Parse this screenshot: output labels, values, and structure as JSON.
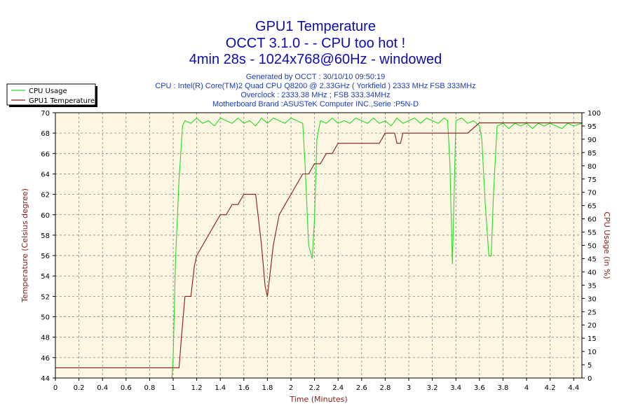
{
  "title": {
    "line1": "GPU1 Temperature",
    "line2": "OCCT 3.1.0 -  - CPU too hot !",
    "line3": "4min 28s - 1024x768@60Hz - windowed"
  },
  "info": {
    "generated": "Generated by OCCT : 30/10/10 09:50:19",
    "cpu": "CPU : Intel(R) Core(TM)2 Quad CPU Q8200 @ 2.33GHz ( Yorkfield ) 2333 MHz FSB 333MHz",
    "overclock": "Overclock : 2333.38 MHz ; FSB 333.34MHz",
    "motherboard": "Motherboard Brand :ASUSTeK Computer INC.,Serie :P5N-D"
  },
  "colors": {
    "cpu_usage": "#22dd22",
    "gpu_temp": "#8b1a1a",
    "plot_bg": "#fdf6e3",
    "grid": "#888888",
    "title": "#0b0bb0",
    "info": "#1e3cb4"
  },
  "chart_data": {
    "type": "line",
    "xlabel": "Time (Minutes)",
    "ylabel_left": "Temperature (Celsius degree)",
    "ylabel_right": "CPU Usage (in %)",
    "xlim": [
      0,
      4.47
    ],
    "ylim_left": [
      44,
      70
    ],
    "ylim_right": [
      0,
      100
    ],
    "x_ticks": [
      "0",
      "0.2",
      "0.4",
      "0.6",
      "0.8",
      "1",
      "1.2",
      "1.4",
      "1.6",
      "1.8",
      "2",
      "2.2",
      "2.4",
      "2.6",
      "2.8",
      "3",
      "3.2",
      "3.4",
      "3.6",
      "3.8",
      "4",
      "4.2",
      "4.4"
    ],
    "y_left_ticks": [
      "44",
      "46",
      "48",
      "50",
      "52",
      "54",
      "56",
      "58",
      "60",
      "62",
      "64",
      "66",
      "68",
      "70"
    ],
    "y_right_ticks": [
      "0",
      "5",
      "10",
      "15",
      "20",
      "25",
      "30",
      "35",
      "40",
      "45",
      "50",
      "55",
      "60",
      "65",
      "70",
      "75",
      "80",
      "85",
      "90",
      "95",
      "100"
    ],
    "grid": true,
    "legend_position": "top-left",
    "series": [
      {
        "name": "CPU Usage",
        "axis": "right",
        "color": "#22dd22",
        "points": [
          [
            0.99,
            0
          ],
          [
            1.0,
            8
          ],
          [
            1.02,
            45
          ],
          [
            1.05,
            75
          ],
          [
            1.08,
            95
          ],
          [
            1.1,
            97
          ],
          [
            1.15,
            96
          ],
          [
            1.2,
            98
          ],
          [
            1.25,
            96
          ],
          [
            1.3,
            97
          ],
          [
            1.35,
            95
          ],
          [
            1.4,
            98
          ],
          [
            1.45,
            97
          ],
          [
            1.5,
            96
          ],
          [
            1.55,
            98
          ],
          [
            1.6,
            96
          ],
          [
            1.65,
            97
          ],
          [
            1.7,
            95
          ],
          [
            1.75,
            98
          ],
          [
            1.8,
            96
          ],
          [
            1.85,
            98
          ],
          [
            1.9,
            97
          ],
          [
            1.95,
            96
          ],
          [
            2.0,
            98
          ],
          [
            2.05,
            97
          ],
          [
            2.1,
            96
          ],
          [
            2.12,
            80
          ],
          [
            2.15,
            50
          ],
          [
            2.18,
            45
          ],
          [
            2.2,
            60
          ],
          [
            2.22,
            90
          ],
          [
            2.25,
            97
          ],
          [
            2.3,
            96
          ],
          [
            2.35,
            98
          ],
          [
            2.4,
            96
          ],
          [
            2.45,
            97
          ],
          [
            2.5,
            96
          ],
          [
            2.55,
            98
          ],
          [
            2.6,
            97
          ],
          [
            2.65,
            96
          ],
          [
            2.7,
            98
          ],
          [
            2.75,
            96
          ],
          [
            2.8,
            97
          ],
          [
            2.85,
            95
          ],
          [
            2.9,
            98
          ],
          [
            2.95,
            96
          ],
          [
            3.0,
            97
          ],
          [
            3.05,
            98
          ],
          [
            3.1,
            96
          ],
          [
            3.15,
            98
          ],
          [
            3.2,
            97
          ],
          [
            3.25,
            96
          ],
          [
            3.3,
            98
          ],
          [
            3.33,
            97
          ],
          [
            3.35,
            80
          ],
          [
            3.37,
            43
          ],
          [
            3.38,
            60
          ],
          [
            3.4,
            97
          ],
          [
            3.45,
            98
          ],
          [
            3.5,
            96
          ],
          [
            3.55,
            97
          ],
          [
            3.6,
            95
          ],
          [
            3.62,
            90
          ],
          [
            3.65,
            65
          ],
          [
            3.68,
            46
          ],
          [
            3.7,
            46
          ],
          [
            3.72,
            70
          ],
          [
            3.75,
            95
          ],
          [
            3.8,
            96
          ],
          [
            3.85,
            94
          ],
          [
            3.9,
            96
          ],
          [
            3.95,
            95
          ],
          [
            4.0,
            96
          ],
          [
            4.05,
            94
          ],
          [
            4.1,
            96
          ],
          [
            4.15,
            95
          ],
          [
            4.2,
            96
          ],
          [
            4.25,
            95
          ],
          [
            4.3,
            94
          ],
          [
            4.35,
            96
          ],
          [
            4.4,
            95
          ],
          [
            4.47,
            96
          ]
        ]
      },
      {
        "name": "GPU1 Temperature",
        "axis": "left",
        "color": "#8b1a1a",
        "points": [
          [
            0,
            45
          ],
          [
            0.8,
            45
          ],
          [
            1.05,
            45
          ],
          [
            1.07,
            48
          ],
          [
            1.1,
            52
          ],
          [
            1.15,
            52
          ],
          [
            1.18,
            55
          ],
          [
            1.2,
            56
          ],
          [
            1.25,
            57
          ],
          [
            1.3,
            58
          ],
          [
            1.35,
            59
          ],
          [
            1.4,
            60
          ],
          [
            1.45,
            60
          ],
          [
            1.5,
            61
          ],
          [
            1.55,
            61
          ],
          [
            1.6,
            62
          ],
          [
            1.65,
            62
          ],
          [
            1.7,
            62
          ],
          [
            1.72,
            60
          ],
          [
            1.75,
            57
          ],
          [
            1.78,
            53
          ],
          [
            1.8,
            52
          ],
          [
            1.82,
            54
          ],
          [
            1.85,
            57
          ],
          [
            1.9,
            60
          ],
          [
            1.95,
            61
          ],
          [
            2.0,
            62
          ],
          [
            2.05,
            63
          ],
          [
            2.1,
            64
          ],
          [
            2.15,
            64
          ],
          [
            2.2,
            65
          ],
          [
            2.25,
            65
          ],
          [
            2.3,
            66
          ],
          [
            2.35,
            66
          ],
          [
            2.4,
            67
          ],
          [
            2.45,
            67
          ],
          [
            2.5,
            67
          ],
          [
            2.55,
            67
          ],
          [
            2.6,
            67
          ],
          [
            2.65,
            67
          ],
          [
            2.7,
            67
          ],
          [
            2.75,
            67
          ],
          [
            2.8,
            68
          ],
          [
            2.85,
            68
          ],
          [
            2.88,
            68
          ],
          [
            2.9,
            67
          ],
          [
            2.93,
            67
          ],
          [
            2.95,
            68
          ],
          [
            3.0,
            68
          ],
          [
            3.1,
            68
          ],
          [
            3.2,
            68
          ],
          [
            3.3,
            68
          ],
          [
            3.4,
            68
          ],
          [
            3.5,
            68
          ],
          [
            3.6,
            69
          ],
          [
            3.7,
            69
          ],
          [
            3.8,
            69
          ],
          [
            3.9,
            69
          ],
          [
            4.0,
            69
          ],
          [
            4.1,
            69
          ],
          [
            4.2,
            69
          ],
          [
            4.3,
            69
          ],
          [
            4.47,
            69
          ]
        ]
      }
    ]
  }
}
